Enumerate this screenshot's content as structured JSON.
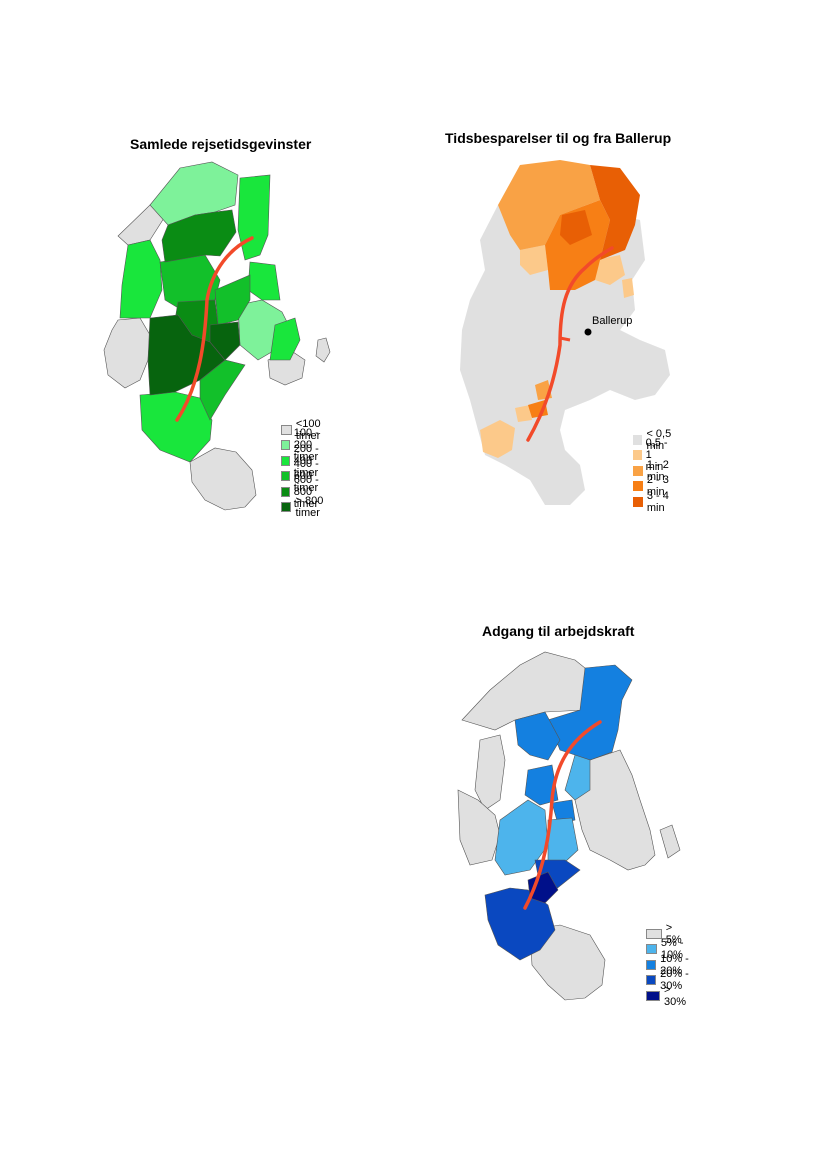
{
  "maps": {
    "travel_time": {
      "title": "Samlede rejsetidsgevinster",
      "legend": [
        {
          "label": "<100 timer",
          "color": "#e0e0e0"
        },
        {
          "label": "100 - 200 timer",
          "color": "#7ef29a"
        },
        {
          "label": "200 - 400 timer",
          "color": "#19e63c"
        },
        {
          "label": "400 - 600 timer",
          "color": "#12c02a"
        },
        {
          "label": "600 - 800 timer",
          "color": "#0a8c14"
        },
        {
          "label": "> 800 timer",
          "color": "#07640e"
        }
      ]
    },
    "ballerup": {
      "title": "Tidsbesparelser til og fra Ballerup",
      "place_label": "Ballerup",
      "legend": [
        {
          "label": "< 0,5 min",
          "color": "#e0e0e0"
        },
        {
          "label": "0,5 - 1 min",
          "color": "#fcc98a"
        },
        {
          "label": "1 - 2 min",
          "color": "#f9a245"
        },
        {
          "label": "2 - 3 min",
          "color": "#f77f15"
        },
        {
          "label": "3 - 4 min",
          "color": "#e85f05"
        }
      ]
    },
    "labour": {
      "title": "Adgang til arbejdskraft",
      "legend": [
        {
          "label": "> 5%",
          "color": "#e0e0e0"
        },
        {
          "label": "5% - 10%",
          "color": "#4db4ec"
        },
        {
          "label": "10% - 20%",
          "color": "#1480e0"
        },
        {
          "label": "20% - 30%",
          "color": "#0a48c0"
        },
        {
          "label": "> 30%",
          "color": "#00108a"
        }
      ]
    }
  },
  "colors": {
    "land": "#e0e0e0",
    "border": "#555555",
    "rail_line": "#f24a2a"
  }
}
